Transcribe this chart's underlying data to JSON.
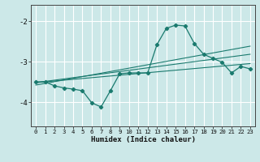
{
  "xlabel": "Humidex (Indice chaleur)",
  "bg_color": "#cce8e8",
  "grid_color": "#ffffff",
  "line_color": "#1a7a6e",
  "xlim": [
    -0.5,
    23.5
  ],
  "ylim": [
    -4.6,
    -1.6
  ],
  "yticks": [
    -4,
    -3,
    -2
  ],
  "xticks": [
    0,
    1,
    2,
    3,
    4,
    5,
    6,
    7,
    8,
    9,
    10,
    11,
    12,
    13,
    14,
    15,
    16,
    17,
    18,
    19,
    20,
    21,
    22,
    23
  ],
  "main_x": [
    0,
    1,
    2,
    3,
    4,
    5,
    6,
    7,
    8,
    9,
    10,
    11,
    12,
    13,
    14,
    15,
    16,
    17,
    18,
    19,
    20,
    21,
    22,
    23
  ],
  "main_y": [
    -3.5,
    -3.5,
    -3.6,
    -3.65,
    -3.68,
    -3.72,
    -4.02,
    -4.12,
    -3.72,
    -3.3,
    -3.28,
    -3.28,
    -3.28,
    -2.58,
    -2.18,
    -2.1,
    -2.12,
    -2.55,
    -2.82,
    -2.92,
    -3.02,
    -3.28,
    -3.12,
    -3.18
  ],
  "line2_x": [
    0,
    23
  ],
  "line2_y": [
    -3.52,
    -3.05
  ],
  "line3_x": [
    0,
    23
  ],
  "line3_y": [
    -3.52,
    -2.82
  ],
  "line4_x": [
    0,
    23
  ],
  "line4_y": [
    -3.58,
    -2.62
  ]
}
